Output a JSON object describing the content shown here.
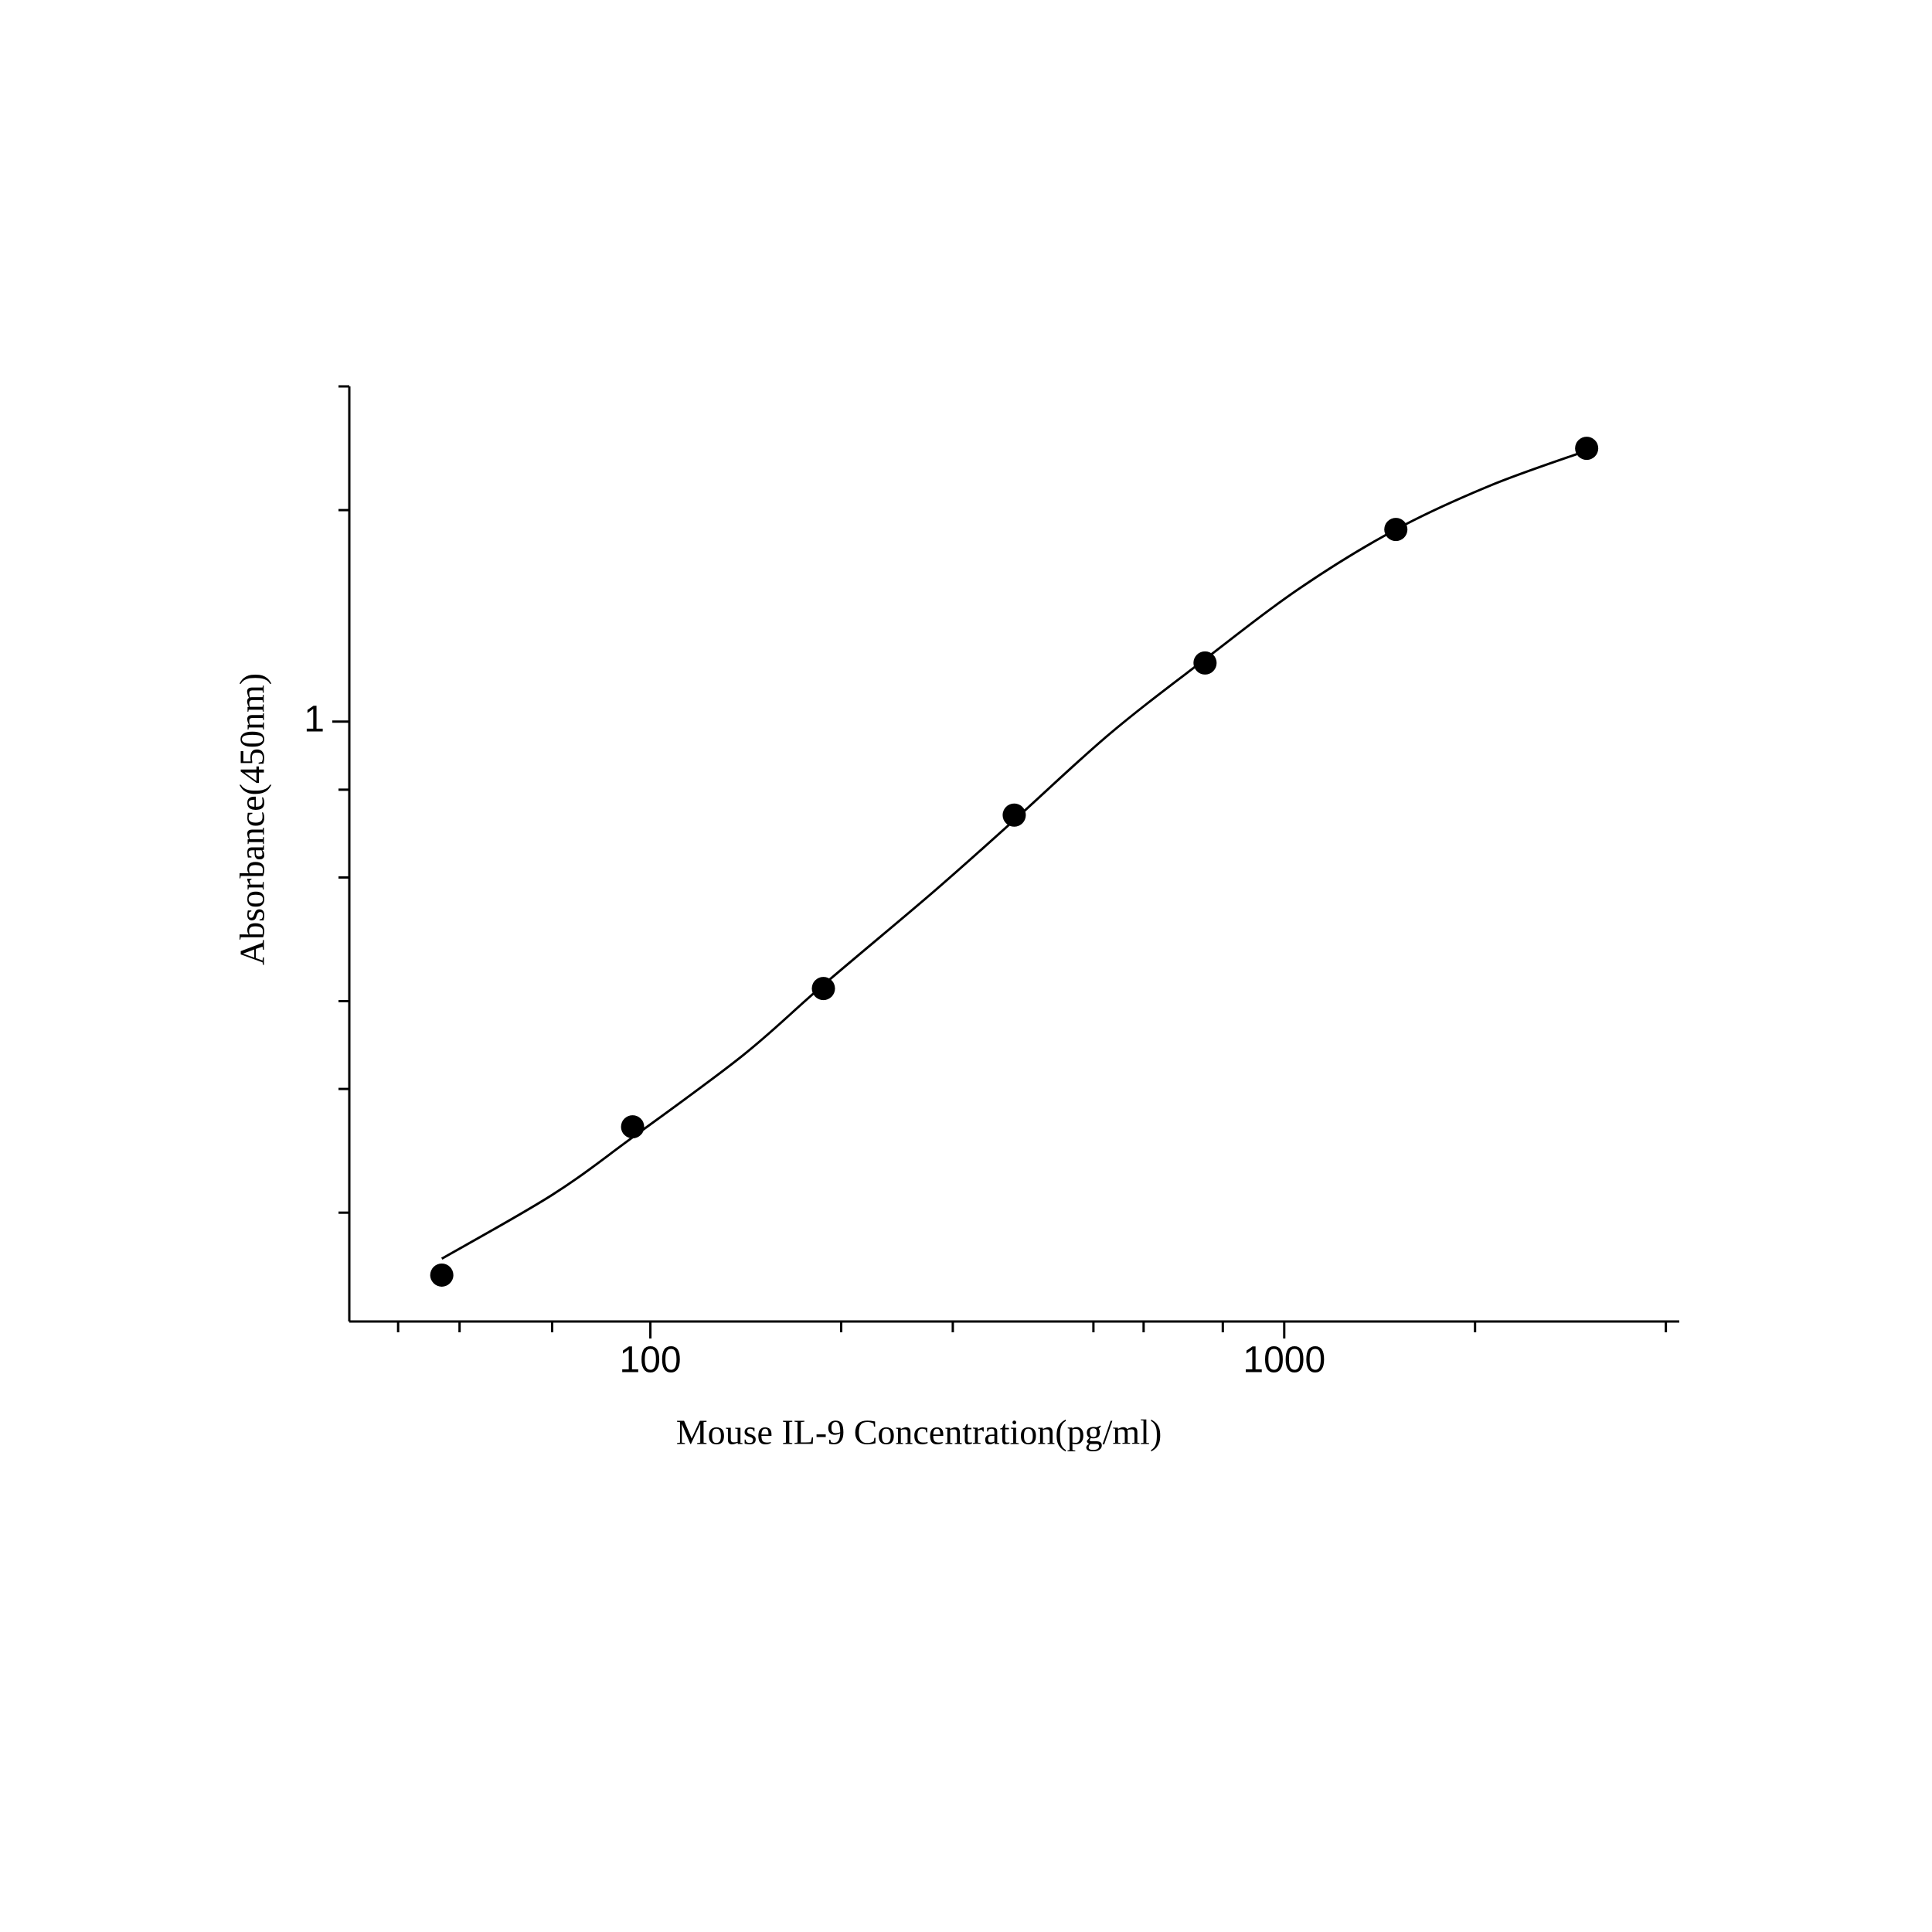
{
  "chart_data": {
    "type": "scatter",
    "x_label": "Mouse IL-9 Concentration(pg/ml)",
    "y_label": "Absorbance(450nm)",
    "x": [
      46.875,
      93.75,
      187.5,
      375,
      750,
      1500,
      3000
    ],
    "values": [
      0.163,
      0.265,
      0.417,
      0.736,
      1.212,
      1.877,
      2.449
    ],
    "color": "#000000",
    "log_x": true,
    "log_y": true,
    "xlim": [
      33.5,
      4200
    ],
    "ylim": [
      0.14,
      3
    ],
    "xticks": [
      100,
      1000
    ],
    "yticks": [
      1
    ],
    "x_minor_ticks": [
      40,
      50,
      70,
      200,
      300,
      500,
      600,
      800,
      2000,
      4000
    ],
    "y_minor_ticks": [
      0.2,
      0.3,
      0.4,
      0.6,
      0.8,
      2,
      3
    ],
    "curve": {
      "x": [
        46.875,
        70,
        93.75,
        140,
        187.5,
        280,
        375,
        530,
        750,
        1060,
        1500,
        2120,
        3000
      ],
      "values": [
        0.172,
        0.212,
        0.256,
        0.335,
        0.422,
        0.573,
        0.724,
        0.96,
        1.227,
        1.55,
        1.877,
        2.17,
        2.43
      ]
    }
  }
}
